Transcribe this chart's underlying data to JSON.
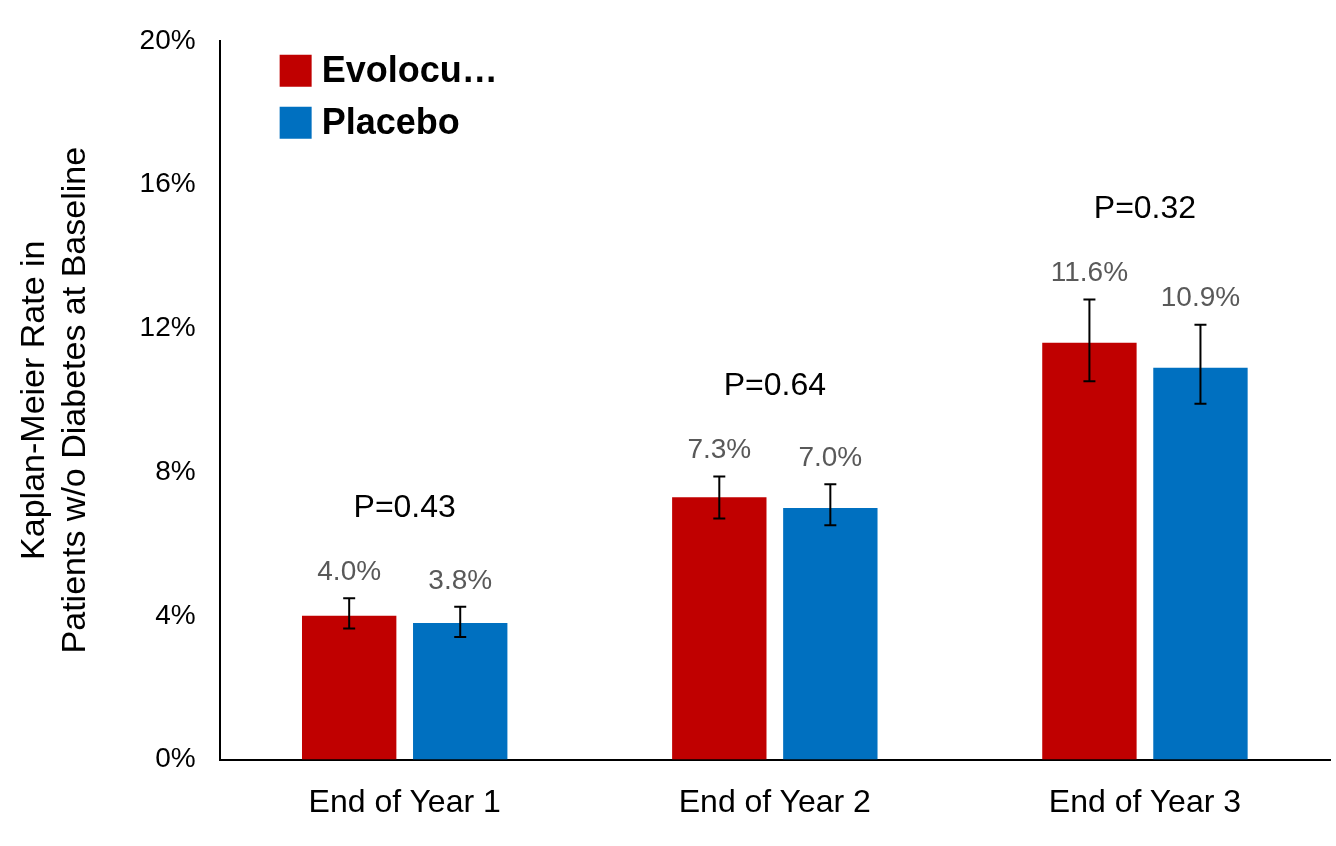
{
  "chart_data": {
    "type": "bar",
    "ylabel": "Kaplan-Meier Rate in\nPatients w/o Diabetes at Baseline",
    "categories": [
      "End of Year 1",
      "End of Year 2",
      "End of Year 3"
    ],
    "series": [
      {
        "name": "Evolocu…",
        "color": "#c00000",
        "values": [
          4.0,
          7.3,
          11.6
        ],
        "value_labels": [
          "4.0%",
          "7.3%",
          "11.6%"
        ],
        "errors": [
          [
            3.65,
            4.49
          ],
          [
            6.71,
            7.88
          ],
          [
            10.53,
            12.8
          ]
        ]
      },
      {
        "name": "Placebo",
        "color": "#0070c0",
        "values": [
          3.8,
          7.0,
          10.9
        ],
        "value_labels": [
          "3.8%",
          "7.0%",
          "10.9%"
        ],
        "errors": [
          [
            3.41,
            4.25
          ],
          [
            6.52,
            7.66
          ],
          [
            9.9,
            12.1
          ]
        ]
      }
    ],
    "annotations": [
      "P=0.43",
      "P=0.64",
      "P=0.32"
    ],
    "ylim": [
      0,
      20
    ],
    "yticks": [
      {
        "value": 0,
        "label": "0%"
      },
      {
        "value": 4,
        "label": "4%"
      },
      {
        "value": 8,
        "label": "8%"
      },
      {
        "value": 12,
        "label": "12%"
      },
      {
        "value": 16,
        "label": "16%"
      },
      {
        "value": 20,
        "label": "20%"
      }
    ],
    "grid": false,
    "legend": "top left"
  }
}
